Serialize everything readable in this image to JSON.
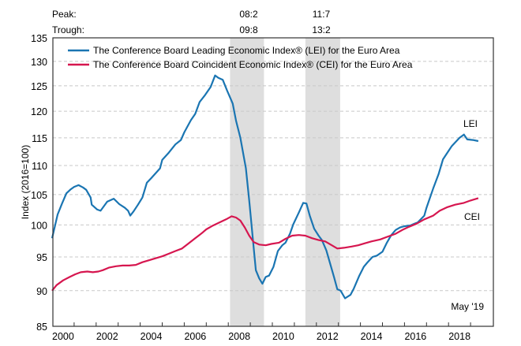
{
  "chart_data": {
    "type": "line",
    "title": "",
    "xlabel": "",
    "ylabel": "Index (2016=100)",
    "y_scale": "log",
    "ylim": [
      85,
      135
    ],
    "yticks": [
      85,
      90,
      95,
      100,
      105,
      110,
      115,
      120,
      125,
      130,
      135
    ],
    "xlim": [
      2000,
      2020
    ],
    "xticks_labels": [
      "2000",
      "2002",
      "2004",
      "2006",
      "2008",
      "2010",
      "2012",
      "2014",
      "2016",
      "2018"
    ],
    "xticks_label_years": [
      2000,
      2002,
      2004,
      2006,
      2008,
      2010,
      2012,
      2014,
      2016,
      2018
    ],
    "grid": true,
    "legend_position": "top-left",
    "annotation": "May '19",
    "peak_trough": {
      "peak_label": "Peak:",
      "trough_label": "Trough:",
      "peaks": [
        "08:2",
        "11:7"
      ],
      "troughs": [
        "09:8",
        "13:2"
      ]
    },
    "recessions": [
      {
        "start": 2008.08,
        "end": 2009.62
      },
      {
        "start": 2011.5,
        "end": 2013.08
      }
    ],
    "series": [
      {
        "name": "The Conference Board Leading Economic Index® (LEI) for the Euro Area",
        "label": "LEI",
        "color": "#1a75b2",
        "points": [
          [
            2000.0,
            97.9
          ],
          [
            2000.25,
            101.7
          ],
          [
            2000.45,
            103.5
          ],
          [
            2000.65,
            105.2
          ],
          [
            2000.85,
            105.9
          ],
          [
            2001.0,
            106.3
          ],
          [
            2001.2,
            106.6
          ],
          [
            2001.4,
            106.2
          ],
          [
            2001.55,
            105.8
          ],
          [
            2001.75,
            104.5
          ],
          [
            2001.8,
            103.3
          ],
          [
            2002.05,
            102.5
          ],
          [
            2002.2,
            102.3
          ],
          [
            2002.5,
            103.8
          ],
          [
            2002.8,
            104.3
          ],
          [
            2003.05,
            103.4
          ],
          [
            2003.3,
            102.8
          ],
          [
            2003.45,
            102.3
          ],
          [
            2003.55,
            101.5
          ],
          [
            2003.7,
            102.2
          ],
          [
            2003.9,
            103.3
          ],
          [
            2004.1,
            104.5
          ],
          [
            2004.3,
            107.0
          ],
          [
            2004.5,
            107.8
          ],
          [
            2004.9,
            109.5
          ],
          [
            2005.0,
            111.0
          ],
          [
            2005.3,
            112.3
          ],
          [
            2005.6,
            113.8
          ],
          [
            2005.85,
            114.6
          ],
          [
            2006.0,
            116.0
          ],
          [
            2006.3,
            118.3
          ],
          [
            2006.5,
            119.5
          ],
          [
            2006.7,
            121.8
          ],
          [
            2006.95,
            123.2
          ],
          [
            2007.2,
            124.8
          ],
          [
            2007.4,
            127.1
          ],
          [
            2007.55,
            126.6
          ],
          [
            2007.75,
            126.2
          ],
          [
            2007.95,
            124.0
          ],
          [
            2008.2,
            121.5
          ],
          [
            2008.35,
            118.2
          ],
          [
            2008.55,
            115.0
          ],
          [
            2008.8,
            109.5
          ],
          [
            2008.95,
            104.0
          ],
          [
            2009.05,
            100.2
          ],
          [
            2009.15,
            96.5
          ],
          [
            2009.25,
            93.0
          ],
          [
            2009.4,
            91.8
          ],
          [
            2009.55,
            91.0
          ],
          [
            2009.7,
            92.0
          ],
          [
            2009.85,
            92.2
          ],
          [
            2010.05,
            93.5
          ],
          [
            2010.25,
            95.9
          ],
          [
            2010.45,
            96.8
          ],
          [
            2010.6,
            97.2
          ],
          [
            2010.8,
            98.6
          ],
          [
            2010.95,
            100.1
          ],
          [
            2011.2,
            102.0
          ],
          [
            2011.4,
            103.6
          ],
          [
            2011.55,
            103.5
          ],
          [
            2011.7,
            101.5
          ],
          [
            2011.9,
            99.4
          ],
          [
            2012.1,
            98.3
          ],
          [
            2012.25,
            97.6
          ],
          [
            2012.45,
            96.0
          ],
          [
            2012.6,
            94.3
          ],
          [
            2012.8,
            92.0
          ],
          [
            2012.95,
            90.2
          ],
          [
            2013.1,
            90.0
          ],
          [
            2013.3,
            88.9
          ],
          [
            2013.55,
            89.4
          ],
          [
            2013.7,
            90.3
          ],
          [
            2013.95,
            92.2
          ],
          [
            2014.15,
            93.5
          ],
          [
            2014.3,
            94.1
          ],
          [
            2014.55,
            95.0
          ],
          [
            2014.75,
            95.2
          ],
          [
            2015.0,
            95.8
          ],
          [
            2015.2,
            97.2
          ],
          [
            2015.4,
            98.4
          ],
          [
            2015.6,
            99.2
          ],
          [
            2015.8,
            99.6
          ],
          [
            2016.0,
            99.8
          ],
          [
            2016.25,
            99.9
          ],
          [
            2016.45,
            100.2
          ],
          [
            2016.6,
            100.4
          ],
          [
            2016.9,
            101.5
          ],
          [
            2017.0,
            102.8
          ],
          [
            2017.3,
            106.0
          ],
          [
            2017.55,
            108.5
          ],
          [
            2017.75,
            111.1
          ],
          [
            2018.0,
            112.6
          ],
          [
            2018.15,
            113.5
          ],
          [
            2018.5,
            115.0
          ],
          [
            2018.7,
            115.6
          ],
          [
            2018.85,
            114.7
          ],
          [
            2019.1,
            114.6
          ],
          [
            2019.35,
            114.4
          ]
        ]
      },
      {
        "name": "The Conference Board Coincident Economic Index® (CEI) for the Euro Area",
        "label": "CEI",
        "color": "#d6164f",
        "points": [
          [
            2000.0,
            90.0
          ],
          [
            2000.2,
            90.8
          ],
          [
            2000.5,
            91.5
          ],
          [
            2000.8,
            92.0
          ],
          [
            2001.05,
            92.4
          ],
          [
            2001.3,
            92.7
          ],
          [
            2001.6,
            92.8
          ],
          [
            2001.85,
            92.7
          ],
          [
            2002.1,
            92.8
          ],
          [
            2002.3,
            93.0
          ],
          [
            2002.6,
            93.4
          ],
          [
            2002.9,
            93.6
          ],
          [
            2003.2,
            93.7
          ],
          [
            2003.5,
            93.7
          ],
          [
            2003.8,
            93.8
          ],
          [
            2004.1,
            94.2
          ],
          [
            2004.4,
            94.5
          ],
          [
            2004.7,
            94.8
          ],
          [
            2005.0,
            95.1
          ],
          [
            2005.3,
            95.5
          ],
          [
            2005.6,
            95.9
          ],
          [
            2005.9,
            96.3
          ],
          [
            2006.2,
            97.1
          ],
          [
            2006.5,
            97.9
          ],
          [
            2006.8,
            98.7
          ],
          [
            2007.0,
            99.3
          ],
          [
            2007.3,
            99.9
          ],
          [
            2007.6,
            100.4
          ],
          [
            2007.9,
            100.9
          ],
          [
            2008.15,
            101.4
          ],
          [
            2008.35,
            101.2
          ],
          [
            2008.55,
            100.7
          ],
          [
            2008.75,
            99.6
          ],
          [
            2008.95,
            98.3
          ],
          [
            2009.15,
            97.3
          ],
          [
            2009.4,
            96.9
          ],
          [
            2009.7,
            96.8
          ],
          [
            2009.95,
            97.0
          ],
          [
            2010.3,
            97.2
          ],
          [
            2010.6,
            97.8
          ],
          [
            2010.9,
            98.3
          ],
          [
            2011.2,
            98.4
          ],
          [
            2011.5,
            98.3
          ],
          [
            2011.8,
            97.9
          ],
          [
            2012.1,
            97.6
          ],
          [
            2012.4,
            97.4
          ],
          [
            2012.7,
            96.8
          ],
          [
            2012.95,
            96.3
          ],
          [
            2013.25,
            96.4
          ],
          [
            2013.6,
            96.6
          ],
          [
            2013.9,
            96.8
          ],
          [
            2014.2,
            97.1
          ],
          [
            2014.5,
            97.4
          ],
          [
            2014.9,
            97.7
          ],
          [
            2015.2,
            98.1
          ],
          [
            2015.6,
            98.6
          ],
          [
            2015.9,
            99.2
          ],
          [
            2016.2,
            99.7
          ],
          [
            2016.55,
            100.2
          ],
          [
            2016.9,
            100.9
          ],
          [
            2017.3,
            101.5
          ],
          [
            2017.6,
            102.3
          ],
          [
            2017.95,
            102.9
          ],
          [
            2018.3,
            103.3
          ],
          [
            2018.7,
            103.6
          ],
          [
            2019.0,
            104.0
          ],
          [
            2019.35,
            104.4
          ]
        ]
      }
    ]
  }
}
